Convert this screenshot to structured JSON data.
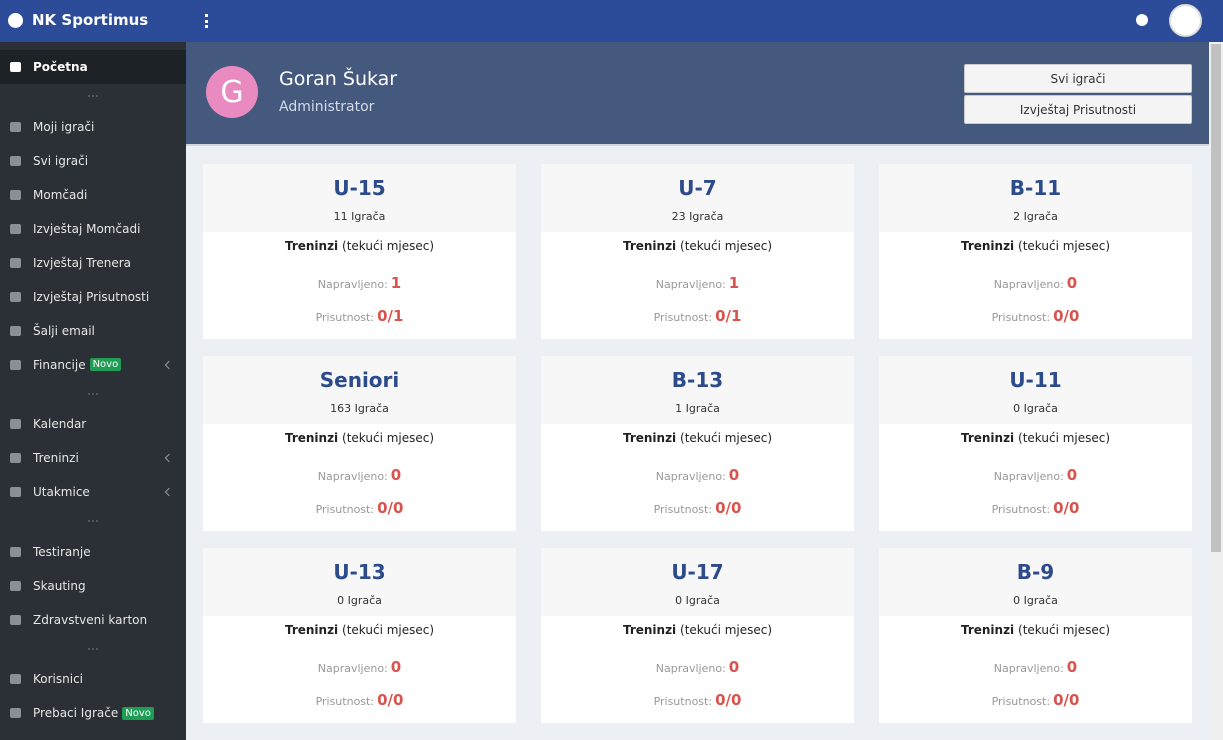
{
  "header": {
    "brand": "NK Sportimus"
  },
  "sidebar": {
    "badge": "Novo",
    "groups": [
      [
        {
          "label": "Početna",
          "active": true
        }
      ],
      [
        {
          "label": "Moji igrači"
        },
        {
          "label": "Svi igrači"
        },
        {
          "label": "Momčadi"
        },
        {
          "label": "Izvještaj Momčadi"
        },
        {
          "label": "Izvještaj Trenera"
        },
        {
          "label": "Izvještaj Prisutnosti"
        },
        {
          "label": "Šalji email"
        },
        {
          "label": "Financije",
          "badge": true,
          "submenu": true
        }
      ],
      [
        {
          "label": "Kalendar"
        },
        {
          "label": "Treninzi",
          "submenu": true
        },
        {
          "label": "Utakmice",
          "submenu": true
        }
      ],
      [
        {
          "label": "Testiranje"
        },
        {
          "label": "Skauting"
        },
        {
          "label": "Zdravstveni karton"
        }
      ],
      [
        {
          "label": "Korisnici"
        },
        {
          "label": "Prebaci Igrače",
          "badge": true
        }
      ]
    ]
  },
  "profile": {
    "initial": "G",
    "name": "Goran Šukar",
    "role": "Administrator",
    "buttons": [
      "Svi igrači",
      "Izvještaj Prisutnosti"
    ]
  },
  "card_labels": {
    "trainings": "Treninzi",
    "period": "(tekući mjesec)",
    "made": "Napravljeno:",
    "attendance": "Prisutnost:"
  },
  "teams": [
    {
      "name": "U-15",
      "players": "11 Igrača",
      "made": "1",
      "attendance": "0/1"
    },
    {
      "name": "U-7",
      "players": "23 Igrača",
      "made": "1",
      "attendance": "0/1"
    },
    {
      "name": "B-11",
      "players": "2 Igrača",
      "made": "0",
      "attendance": "0/0"
    },
    {
      "name": "Seniori",
      "players": "163 Igrača",
      "made": "0",
      "attendance": "0/0"
    },
    {
      "name": "B-13",
      "players": "1 Igrača",
      "made": "0",
      "attendance": "0/0"
    },
    {
      "name": "U-11",
      "players": "0 Igrača",
      "made": "0",
      "attendance": "0/0"
    },
    {
      "name": "U-13",
      "players": "0 Igrača",
      "made": "0",
      "attendance": "0/0"
    },
    {
      "name": "U-17",
      "players": "0 Igrača",
      "made": "0",
      "attendance": "0/0"
    },
    {
      "name": "B-9",
      "players": "0 Igrača",
      "made": "0",
      "attendance": "0/0"
    }
  ]
}
